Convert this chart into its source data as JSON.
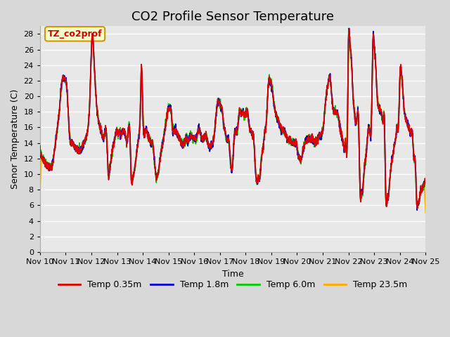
{
  "title": "CO2 Profile Sensor Temperature",
  "xlabel": "Time",
  "ylabel": "Senor Temperature (C)",
  "annotation_label": "TZ_co2prof",
  "annotation_color": "#cc0000",
  "annotation_bg": "#ffffcc",
  "annotation_border": "#cc9900",
  "ylim": [
    0,
    29
  ],
  "yticks": [
    0,
    2,
    4,
    6,
    8,
    10,
    12,
    14,
    16,
    18,
    20,
    22,
    24,
    26,
    28
  ],
  "x_labels": [
    "Nov 10",
    "Nov 11",
    "Nov 12",
    "Nov 13",
    "Nov 14",
    "Nov 15",
    "Nov 16",
    "Nov 17",
    "Nov 18",
    "Nov 19",
    "Nov 20",
    "Nov 21",
    "Nov 22",
    "Nov 23",
    "Nov 24",
    "Nov 25"
  ],
  "x_ticks": [
    0,
    1,
    2,
    3,
    4,
    5,
    6,
    7,
    8,
    9,
    10,
    11,
    12,
    13,
    14,
    15
  ],
  "series": {
    "temp_035m": {
      "color": "#dd0000",
      "label": "Temp 0.35m",
      "lw": 1.2
    },
    "temp_18m": {
      "color": "#0000cc",
      "label": "Temp 1.8m",
      "lw": 1.2
    },
    "temp_60m": {
      "color": "#00cc00",
      "label": "Temp 6.0m",
      "lw": 1.2
    },
    "temp_235m": {
      "color": "#ffaa00",
      "label": "Temp 23.5m",
      "lw": 1.2
    }
  },
  "background_color": "#d8d8d8",
  "plot_bg": "#e8e8e8",
  "grid_color": "#ffffff",
  "title_fontsize": 13,
  "axis_fontsize": 9,
  "tick_fontsize": 8,
  "keypoints": [
    [
      0.0,
      13.2
    ],
    [
      0.1,
      12.0
    ],
    [
      0.2,
      11.5
    ],
    [
      0.4,
      10.8
    ],
    [
      0.5,
      11.5
    ],
    [
      0.6,
      14.0
    ],
    [
      0.7,
      16.5
    ],
    [
      0.75,
      18.0
    ],
    [
      0.85,
      21.8
    ],
    [
      0.95,
      22.2
    ],
    [
      1.05,
      21.0
    ],
    [
      1.15,
      15.0
    ],
    [
      1.25,
      14.0
    ],
    [
      1.35,
      13.5
    ],
    [
      1.45,
      13.2
    ],
    [
      1.55,
      13.0
    ],
    [
      1.7,
      14.0
    ],
    [
      1.85,
      15.5
    ],
    [
      1.95,
      20.5
    ],
    [
      2.0,
      25.8
    ],
    [
      2.05,
      27.8
    ],
    [
      2.1,
      25.0
    ],
    [
      2.2,
      19.0
    ],
    [
      2.3,
      16.5
    ],
    [
      2.4,
      15.2
    ],
    [
      2.5,
      15.0
    ],
    [
      2.6,
      14.5
    ],
    [
      2.65,
      10.4
    ],
    [
      2.7,
      10.2
    ],
    [
      2.8,
      12.8
    ],
    [
      2.9,
      14.5
    ],
    [
      3.0,
      15.5
    ],
    [
      3.05,
      15.2
    ],
    [
      3.1,
      15.5
    ],
    [
      3.15,
      15.2
    ],
    [
      3.2,
      15.5
    ],
    [
      3.3,
      15.3
    ],
    [
      3.4,
      14.5
    ],
    [
      3.5,
      15.0
    ],
    [
      3.55,
      9.5
    ],
    [
      3.6,
      9.3
    ],
    [
      3.65,
      10.0
    ],
    [
      3.75,
      12.5
    ],
    [
      3.85,
      15.0
    ],
    [
      3.9,
      17.8
    ],
    [
      3.95,
      23.8
    ],
    [
      4.0,
      18.0
    ],
    [
      4.1,
      15.5
    ],
    [
      4.2,
      15.0
    ],
    [
      4.3,
      14.0
    ],
    [
      4.4,
      13.5
    ],
    [
      4.5,
      10.0
    ],
    [
      4.6,
      10.2
    ],
    [
      4.7,
      12.5
    ],
    [
      4.8,
      14.5
    ],
    [
      4.9,
      16.5
    ],
    [
      5.0,
      18.5
    ],
    [
      5.05,
      18.5
    ],
    [
      5.1,
      18.3
    ],
    [
      5.15,
      16.0
    ],
    [
      5.2,
      15.5
    ],
    [
      5.3,
      15.5
    ],
    [
      5.35,
      15.0
    ],
    [
      5.4,
      14.8
    ],
    [
      5.45,
      14.5
    ],
    [
      5.5,
      14.0
    ],
    [
      5.55,
      13.8
    ],
    [
      5.6,
      14.0
    ],
    [
      5.65,
      14.2
    ],
    [
      5.7,
      14.5
    ],
    [
      5.75,
      14.3
    ],
    [
      5.8,
      14.5
    ],
    [
      5.85,
      14.8
    ],
    [
      5.9,
      15.0
    ],
    [
      5.95,
      14.5
    ],
    [
      6.0,
      14.8
    ],
    [
      6.05,
      14.5
    ],
    [
      6.1,
      14.8
    ],
    [
      6.15,
      15.5
    ],
    [
      6.2,
      15.8
    ],
    [
      6.25,
      15.2
    ],
    [
      6.3,
      14.5
    ],
    [
      6.35,
      14.5
    ],
    [
      6.4,
      14.8
    ],
    [
      6.45,
      15.0
    ],
    [
      6.5,
      14.5
    ],
    [
      6.6,
      13.5
    ],
    [
      6.7,
      14.0
    ],
    [
      6.75,
      14.3
    ],
    [
      6.8,
      15.8
    ],
    [
      6.9,
      19.0
    ],
    [
      7.0,
      19.0
    ],
    [
      7.05,
      18.5
    ],
    [
      7.1,
      18.0
    ],
    [
      7.15,
      16.0
    ],
    [
      7.2,
      15.5
    ],
    [
      7.25,
      14.5
    ],
    [
      7.3,
      14.5
    ],
    [
      7.35,
      14.2
    ],
    [
      7.4,
      12.0
    ],
    [
      7.5,
      11.5
    ],
    [
      7.55,
      14.5
    ],
    [
      7.65,
      15.5
    ],
    [
      7.7,
      16.2
    ],
    [
      7.75,
      17.8
    ],
    [
      7.8,
      18.0
    ],
    [
      7.85,
      17.8
    ],
    [
      7.9,
      18.0
    ],
    [
      7.95,
      17.5
    ],
    [
      8.0,
      17.8
    ],
    [
      8.1,
      17.5
    ],
    [
      8.15,
      16.0
    ],
    [
      8.2,
      15.5
    ],
    [
      8.25,
      15.2
    ],
    [
      8.3,
      15.0
    ],
    [
      8.4,
      9.7
    ],
    [
      8.5,
      9.4
    ],
    [
      8.55,
      9.5
    ],
    [
      8.6,
      11.5
    ],
    [
      8.7,
      14.0
    ],
    [
      8.75,
      15.5
    ],
    [
      8.8,
      16.5
    ],
    [
      8.9,
      22.2
    ],
    [
      8.95,
      22.0
    ],
    [
      9.0,
      21.5
    ],
    [
      9.05,
      20.5
    ],
    [
      9.1,
      19.0
    ],
    [
      9.2,
      17.5
    ],
    [
      9.3,
      16.5
    ],
    [
      9.4,
      15.8
    ],
    [
      9.5,
      15.5
    ],
    [
      9.55,
      15.2
    ],
    [
      9.6,
      14.8
    ],
    [
      9.65,
      14.5
    ],
    [
      9.7,
      14.5
    ],
    [
      9.8,
      14.0
    ],
    [
      9.9,
      14.0
    ],
    [
      9.95,
      14.2
    ],
    [
      10.0,
      13.5
    ],
    [
      10.05,
      12.2
    ],
    [
      10.1,
      12.0
    ],
    [
      10.15,
      11.8
    ],
    [
      10.2,
      12.5
    ],
    [
      10.3,
      14.0
    ],
    [
      10.4,
      14.5
    ],
    [
      10.5,
      14.5
    ],
    [
      10.6,
      14.5
    ],
    [
      10.7,
      14.0
    ],
    [
      10.8,
      14.5
    ],
    [
      10.9,
      15.0
    ],
    [
      11.0,
      15.5
    ],
    [
      11.1,
      19.0
    ],
    [
      11.15,
      20.5
    ],
    [
      11.2,
      21.5
    ],
    [
      11.3,
      22.0
    ],
    [
      11.35,
      20.0
    ],
    [
      11.4,
      18.5
    ],
    [
      11.5,
      18.0
    ],
    [
      11.6,
      17.5
    ],
    [
      11.7,
      15.5
    ],
    [
      11.8,
      13.8
    ],
    [
      11.85,
      13.2
    ],
    [
      11.9,
      13.5
    ],
    [
      11.95,
      14.0
    ],
    [
      12.0,
      27.2
    ],
    [
      12.05,
      27.0
    ],
    [
      12.1,
      25.5
    ],
    [
      12.15,
      22.0
    ],
    [
      12.2,
      19.0
    ],
    [
      12.25,
      17.5
    ],
    [
      12.3,
      16.5
    ],
    [
      12.4,
      16.0
    ],
    [
      12.45,
      7.8
    ],
    [
      12.5,
      7.5
    ],
    [
      12.55,
      7.8
    ],
    [
      12.6,
      10.0
    ],
    [
      12.7,
      13.0
    ],
    [
      12.8,
      16.0
    ],
    [
      12.9,
      18.0
    ],
    [
      12.95,
      27.0
    ],
    [
      13.0,
      26.5
    ],
    [
      13.05,
      24.5
    ],
    [
      13.1,
      21.0
    ],
    [
      13.2,
      18.5
    ],
    [
      13.3,
      17.5
    ],
    [
      13.35,
      17.0
    ],
    [
      13.4,
      16.5
    ],
    [
      13.45,
      7.0
    ],
    [
      13.5,
      6.8
    ],
    [
      13.55,
      7.0
    ],
    [
      13.6,
      9.0
    ],
    [
      13.7,
      12.0
    ],
    [
      13.8,
      14.0
    ],
    [
      13.85,
      15.0
    ],
    [
      13.9,
      16.0
    ],
    [
      13.95,
      16.5
    ],
    [
      14.0,
      22.5
    ],
    [
      14.05,
      23.3
    ],
    [
      14.1,
      21.5
    ],
    [
      14.15,
      19.0
    ],
    [
      14.2,
      17.5
    ],
    [
      14.3,
      16.5
    ],
    [
      14.4,
      15.5
    ],
    [
      14.5,
      14.5
    ],
    [
      14.55,
      12.0
    ],
    [
      14.6,
      11.5
    ],
    [
      14.65,
      6.5
    ],
    [
      14.7,
      6.1
    ],
    [
      14.75,
      6.5
    ],
    [
      14.8,
      7.8
    ],
    [
      14.85,
      8.0
    ],
    [
      14.9,
      8.5
    ],
    [
      14.95,
      8.8
    ],
    [
      15.0,
      9.2
    ]
  ]
}
